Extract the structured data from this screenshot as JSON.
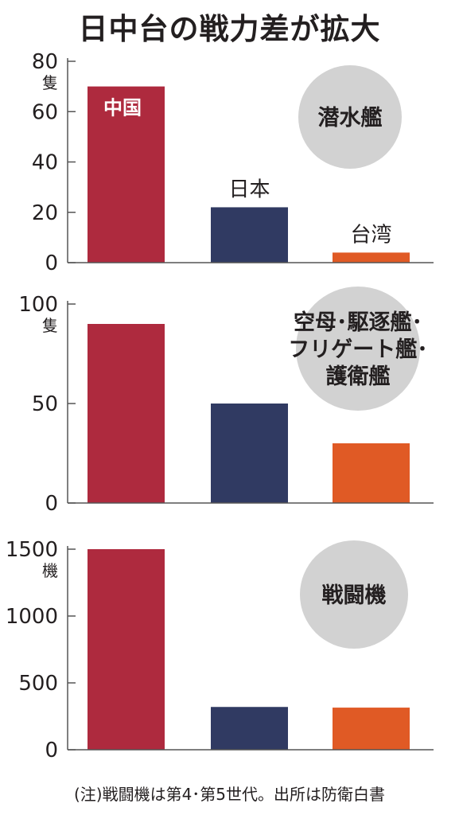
{
  "title": "日中台の戦力差が拡大",
  "footnote": "(注)戦闘機は第4･第5世代。出所は防衛白書",
  "colors": {
    "china": "#ae2a3e",
    "japan": "#303a62",
    "taiwan": "#e05a25",
    "badge": "#d2d2d2",
    "axis": "#555555"
  },
  "chart_data": [
    {
      "type": "bar",
      "title": "潜水艦",
      "categories": [
        "中国",
        "日本",
        "台湾"
      ],
      "values": [
        70,
        22,
        4
      ],
      "unit": "隻",
      "ylim": [
        0,
        80
      ],
      "yticks": [
        "0",
        "20",
        "40",
        "60",
        "80"
      ],
      "grid": false
    },
    {
      "type": "bar",
      "title": "空母･駆逐艦･フリゲート艦･護衛艦",
      "title_lines": [
        "空母･駆逐艦･",
        "フリゲート艦･",
        "護衛艦"
      ],
      "categories": [
        "中国",
        "日本",
        "台湾"
      ],
      "values": [
        90,
        50,
        30
      ],
      "unit": "隻",
      "ylim": [
        0,
        100
      ],
      "yticks": [
        "0",
        "50",
        "100"
      ],
      "grid": false
    },
    {
      "type": "bar",
      "title": "戦闘機",
      "categories": [
        "中国",
        "日本",
        "台湾"
      ],
      "values": [
        1500,
        320,
        315
      ],
      "unit": "機",
      "ylim": [
        0,
        1500
      ],
      "yticks": [
        "0",
        "500",
        "1000",
        "1500"
      ],
      "grid": false
    }
  ]
}
